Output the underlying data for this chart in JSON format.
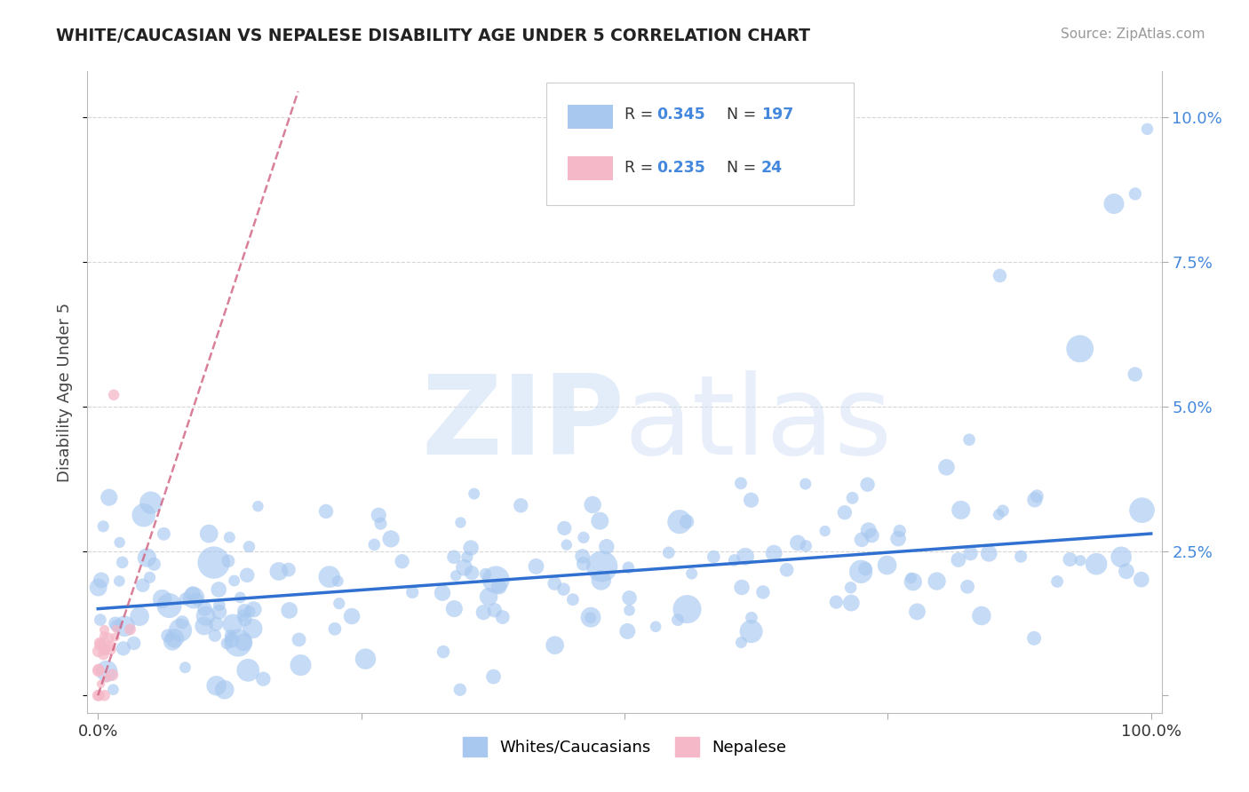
{
  "title": "WHITE/CAUCASIAN VS NEPALESE DISABILITY AGE UNDER 5 CORRELATION CHART",
  "source": "Source: ZipAtlas.com",
  "ylabel": "Disability Age Under 5",
  "watermark_zip": "ZIP",
  "watermark_atlas": "atlas",
  "blue_R": 0.345,
  "blue_N": 197,
  "pink_R": 0.235,
  "pink_N": 24,
  "blue_color": "#a8c8f0",
  "pink_color": "#f5b8c8",
  "blue_line_color": "#3070d0",
  "pink_line_color": "#d06080",
  "legend_blue_label": "Whites/Caucasians",
  "legend_pink_label": "Nepalese",
  "xlim": [
    -0.01,
    1.01
  ],
  "ylim": [
    -0.003,
    0.108
  ],
  "blue_intercept": 0.015,
  "blue_slope": 0.013,
  "pink_intercept": 0.0,
  "pink_slope": 0.55,
  "blue_seed": 12,
  "pink_seed": 99,
  "title_color": "#222222",
  "source_color": "#999999",
  "tick_color": "#4488dd",
  "grid_color": "#cccccc"
}
